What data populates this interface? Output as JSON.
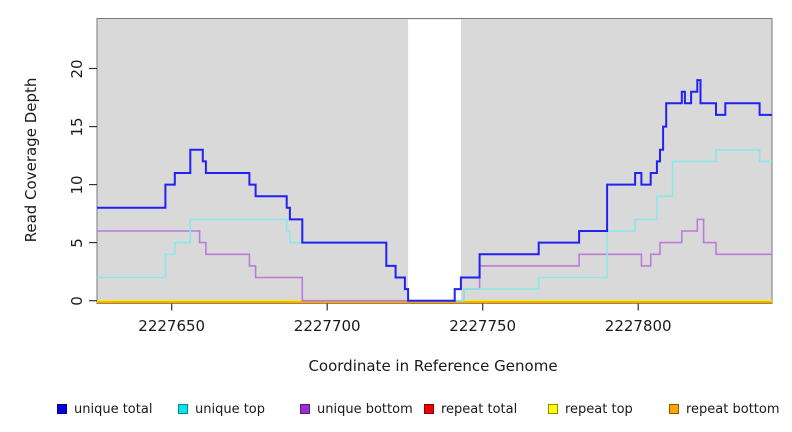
{
  "figure": {
    "x_axis_label": "Coordinate in Reference Genome",
    "y_axis_label": "Read Coverage Depth"
  },
  "legend": {
    "items": [
      {
        "label": "unique total",
        "fill": "#0000e0",
        "border": "#00008b"
      },
      {
        "label": "unique top",
        "fill": "#00e5ee",
        "border": "#008b8b"
      },
      {
        "label": "unique bottom",
        "fill": "#9932cc",
        "border": "#551a8b"
      },
      {
        "label": "repeat total",
        "fill": "#ee0000",
        "border": "#8b0000"
      },
      {
        "label": "repeat top",
        "fill": "#ffff00",
        "border": "#8b8b00"
      },
      {
        "label": "repeat bottom",
        "fill": "#ffa500",
        "border": "#8b5a00"
      }
    ]
  },
  "chart_data": {
    "type": "line",
    "subtype": "step-coverage",
    "title": "",
    "xlabel": "Coordinate in Reference Genome",
    "ylabel": "Read Coverage Depth",
    "x_range": [
      2227626,
      2227843
    ],
    "y_range": [
      0,
      24.3
    ],
    "x_ticks": [
      2227650,
      2227700,
      2227750,
      2227800
    ],
    "x_tick_labels": [
      "2227650",
      "2227700",
      "2227750",
      "2227800"
    ],
    "y_ticks": [
      0,
      5,
      10,
      15,
      20
    ],
    "y_tick_labels": [
      "0",
      "5",
      "10",
      "15",
      "20"
    ],
    "grid": false,
    "plot_bg": "#d9d9d9",
    "gap_region": {
      "x_start": 2227726,
      "x_end": 2227743,
      "color": "#ffffff"
    },
    "legend_position": "bottom",
    "series": [
      {
        "name": "repeat total",
        "color": "#ee2222",
        "line_width": 1.5,
        "segments": [
          [
            2227626,
            2227843,
            0
          ]
        ]
      },
      {
        "name": "repeat top",
        "color": "#f2f200",
        "line_width": 1.5,
        "segments": [
          [
            2227626,
            2227843,
            0
          ]
        ]
      },
      {
        "name": "repeat bottom",
        "color": "#ffa500",
        "line_width": 2,
        "segments": [
          [
            2227626,
            2227843,
            0
          ]
        ]
      },
      {
        "name": "unique bottom",
        "color": "#bb7bd9",
        "line_width": 1.6,
        "segments": [
          [
            2227626,
            2227659,
            6
          ],
          [
            2227659,
            2227661,
            5
          ],
          [
            2227661,
            2227675,
            4
          ],
          [
            2227675,
            2227677,
            3
          ],
          [
            2227677,
            2227692,
            2
          ],
          [
            2227692,
            2227744,
            0
          ],
          [
            2227744,
            2227749,
            1
          ],
          [
            2227749,
            2227781,
            3
          ],
          [
            2227781,
            2227801,
            4
          ],
          [
            2227801,
            2227804,
            3
          ],
          [
            2227804,
            2227807,
            4
          ],
          [
            2227807,
            2227814,
            5
          ],
          [
            2227814,
            2227819,
            6
          ],
          [
            2227819,
            2227821,
            7
          ],
          [
            2227821,
            2227825,
            5
          ],
          [
            2227825,
            2227843,
            4
          ]
        ]
      },
      {
        "name": "unique top",
        "color": "#8ce7ea",
        "line_width": 1.6,
        "segments": [
          [
            2227626,
            2227648,
            2
          ],
          [
            2227648,
            2227651,
            4
          ],
          [
            2227651,
            2227656,
            5
          ],
          [
            2227656,
            2227687,
            7
          ],
          [
            2227687,
            2227688,
            6
          ],
          [
            2227688,
            2227719,
            5
          ],
          [
            2227719,
            2227722,
            3
          ],
          [
            2227722,
            2227725,
            2
          ],
          [
            2227725,
            2227726,
            1
          ],
          [
            2227726,
            2227744,
            0
          ],
          [
            2227744,
            2227768,
            1
          ],
          [
            2227768,
            2227790,
            2
          ],
          [
            2227790,
            2227799,
            6
          ],
          [
            2227799,
            2227806,
            7
          ],
          [
            2227806,
            2227811,
            9
          ],
          [
            2227811,
            2227825,
            12
          ],
          [
            2227825,
            2227839,
            13
          ],
          [
            2227839,
            2227843,
            12
          ]
        ]
      },
      {
        "name": "unique total",
        "color": "#2121f3",
        "line_width": 2,
        "segments": [
          [
            2227626,
            2227648,
            8
          ],
          [
            2227648,
            2227651,
            10
          ],
          [
            2227651,
            2227656,
            11
          ],
          [
            2227656,
            2227660,
            13
          ],
          [
            2227660,
            2227661,
            12
          ],
          [
            2227661,
            2227675,
            11
          ],
          [
            2227675,
            2227677,
            10
          ],
          [
            2227677,
            2227687,
            9
          ],
          [
            2227687,
            2227688,
            8
          ],
          [
            2227688,
            2227692,
            7
          ],
          [
            2227692,
            2227719,
            5
          ],
          [
            2227719,
            2227722,
            3
          ],
          [
            2227722,
            2227725,
            2
          ],
          [
            2227725,
            2227726,
            1
          ],
          [
            2227726,
            2227741,
            0
          ],
          [
            2227741,
            2227743,
            1
          ],
          [
            2227743,
            2227749,
            2
          ],
          [
            2227749,
            2227768,
            4
          ],
          [
            2227768,
            2227781,
            5
          ],
          [
            2227781,
            2227790,
            6
          ],
          [
            2227790,
            2227799,
            10
          ],
          [
            2227799,
            2227801,
            11
          ],
          [
            2227801,
            2227804,
            10
          ],
          [
            2227804,
            2227806,
            11
          ],
          [
            2227806,
            2227807,
            12
          ],
          [
            2227807,
            2227808,
            13
          ],
          [
            2227808,
            2227809,
            15
          ],
          [
            2227809,
            2227814,
            17
          ],
          [
            2227814,
            2227815,
            18
          ],
          [
            2227815,
            2227817,
            17
          ],
          [
            2227817,
            2227819,
            18
          ],
          [
            2227819,
            2227820,
            19
          ],
          [
            2227820,
            2227825,
            17
          ],
          [
            2227825,
            2227828,
            16
          ],
          [
            2227828,
            2227839,
            17
          ],
          [
            2227839,
            2227843,
            16
          ]
        ]
      }
    ]
  }
}
